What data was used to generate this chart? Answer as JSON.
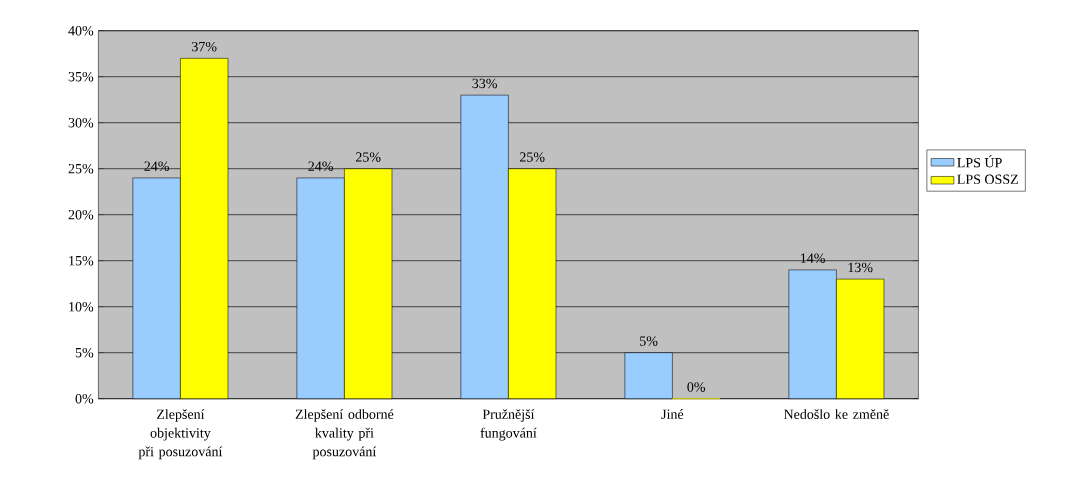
{
  "chart_data": {
    "type": "bar",
    "categories": [
      "Zlepšení objektivity při posuzování",
      "Zlepšení odborné kvality při posuzování",
      "Pružnější fungování",
      "Jiné",
      "Nedošlo ke změně"
    ],
    "series": [
      {
        "name": "LPS ÚP",
        "color": "#99ccff",
        "values": [
          24,
          24,
          33,
          5,
          14
        ],
        "value_labels": [
          "24%",
          "24%",
          "33%",
          "5%",
          "14%"
        ]
      },
      {
        "name": "LPS OSSZ",
        "color": "#ffff00",
        "values": [
          37,
          25,
          25,
          0,
          13
        ],
        "value_labels": [
          "37%",
          "25%",
          "25%",
          "0%",
          "13%"
        ]
      }
    ],
    "ylim": [
      0,
      40
    ],
    "yticks": [
      {
        "value": 0,
        "label": "0%"
      },
      {
        "value": 5,
        "label": "5%"
      },
      {
        "value": 10,
        "label": "10%"
      },
      {
        "value": 15,
        "label": "15%"
      },
      {
        "value": 20,
        "label": "20%"
      },
      {
        "value": 25,
        "label": "25%"
      },
      {
        "value": 30,
        "label": "30%"
      },
      {
        "value": 35,
        "label": "35%"
      },
      {
        "value": 40,
        "label": "40%"
      }
    ],
    "grid": "y",
    "legend": "right"
  }
}
